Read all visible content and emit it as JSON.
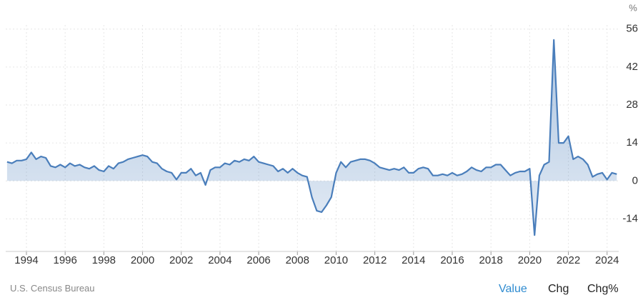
{
  "chart_data": {
    "type": "area",
    "unit": "%",
    "source": "U.S. Census Bureau",
    "tabs": [
      "Value",
      "Chg",
      "Chg%"
    ],
    "color": "#4a7ebb",
    "grid": true,
    "xlim": [
      1992.93,
      2024.6
    ],
    "xticks": [
      1994,
      1996,
      1998,
      2000,
      2002,
      2004,
      2006,
      2008,
      2010,
      2012,
      2014,
      2016,
      2018,
      2020,
      2022,
      2024
    ],
    "ylim": [
      -26,
      57.5
    ],
    "yticks": [
      -14,
      0,
      14,
      28,
      42,
      56
    ],
    "x": [
      1993,
      1993.25,
      1993.5,
      1993.75,
      1994,
      1994.25,
      1994.5,
      1994.75,
      1995,
      1995.25,
      1995.5,
      1995.75,
      1996,
      1996.25,
      1996.5,
      1996.75,
      1997,
      1997.25,
      1997.5,
      1997.75,
      1998,
      1998.25,
      1998.5,
      1998.75,
      1999,
      1999.25,
      1999.5,
      1999.75,
      2000,
      2000.25,
      2000.5,
      2000.75,
      2001,
      2001.25,
      2001.5,
      2001.75,
      2002,
      2002.25,
      2002.5,
      2002.75,
      2003,
      2003.25,
      2003.5,
      2003.75,
      2004,
      2004.25,
      2004.5,
      2004.75,
      2005,
      2005.25,
      2005.5,
      2005.75,
      2006,
      2006.25,
      2006.5,
      2006.75,
      2007,
      2007.25,
      2007.5,
      2007.75,
      2008,
      2008.25,
      2008.5,
      2008.75,
      2009,
      2009.25,
      2009.5,
      2009.75,
      2010,
      2010.25,
      2010.5,
      2010.75,
      2011,
      2011.25,
      2011.5,
      2011.75,
      2012,
      2012.25,
      2012.5,
      2012.75,
      2013,
      2013.25,
      2013.5,
      2013.75,
      2014,
      2014.25,
      2014.5,
      2014.75,
      2015,
      2015.25,
      2015.5,
      2015.75,
      2016,
      2016.25,
      2016.5,
      2016.75,
      2017,
      2017.25,
      2017.5,
      2017.75,
      2018,
      2018.25,
      2018.5,
      2018.75,
      2019,
      2019.25,
      2019.5,
      2019.75,
      2020,
      2020.25,
      2020.5,
      2020.75,
      2021,
      2021.25,
      2021.5,
      2021.75,
      2022,
      2022.25,
      2022.5,
      2022.75,
      2023,
      2023.25,
      2023.5,
      2023.75,
      2024,
      2024.25,
      2024.5
    ],
    "values": [
      7,
      6.5,
      7.5,
      7.5,
      8,
      10.5,
      8,
      9,
      8.5,
      5.5,
      5,
      6,
      5,
      6.5,
      5.5,
      6,
      5,
      4.5,
      5.5,
      4,
      3.5,
      5.5,
      4.5,
      6.5,
      7,
      8,
      8.5,
      9,
      9.5,
      9,
      7,
      6.5,
      4.5,
      3.5,
      3,
      0.5,
      3,
      3,
      4.5,
      2,
      3,
      -1.5,
      4,
      5,
      5,
      6.5,
      6,
      7.5,
      7,
      8,
      7.5,
      9,
      7,
      6.5,
      6,
      5.5,
      3.5,
      4.5,
      3,
      4.5,
      3,
      2,
      1.5,
      -6,
      -11,
      -11.5,
      -9,
      -6,
      3,
      7,
      5,
      7,
      7.5,
      8,
      8,
      7.5,
      6.5,
      5,
      4.5,
      4,
      4.5,
      4,
      5,
      3,
      3,
      4.5,
      5,
      4.5,
      2,
      2,
      2.5,
      2,
      3,
      2,
      2.5,
      3.5,
      5,
      4,
      3.5,
      5,
      5,
      6,
      6,
      4,
      2,
      3,
      3.5,
      3.5,
      4.5,
      -20,
      2,
      6,
      7,
      52,
      14,
      14,
      16.5,
      8,
      9,
      8,
      6,
      1.5,
      2.5,
      3,
      0.5,
      3,
      2.5
    ]
  }
}
